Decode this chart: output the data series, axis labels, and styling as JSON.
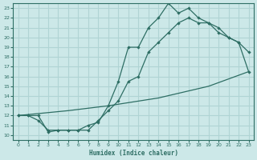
{
  "xlabel": "Humidex (Indice chaleur)",
  "bg_color": "#cce8e8",
  "grid_color": "#b0d4d4",
  "line_color": "#2e6e64",
  "xlim": [
    -0.5,
    23.5
  ],
  "ylim": [
    9.5,
    23.5
  ],
  "xticks": [
    0,
    1,
    2,
    3,
    4,
    5,
    6,
    7,
    8,
    9,
    10,
    11,
    12,
    13,
    14,
    15,
    16,
    17,
    18,
    19,
    20,
    21,
    22,
    23
  ],
  "yticks": [
    10,
    11,
    12,
    13,
    14,
    15,
    16,
    17,
    18,
    19,
    20,
    21,
    22,
    23
  ],
  "curve1_x": [
    0,
    1,
    2,
    3,
    4,
    5,
    6,
    7,
    8,
    9,
    10,
    11,
    12,
    13,
    14,
    15,
    16,
    17,
    18,
    19,
    20,
    21,
    22,
    23
  ],
  "curve1_y": [
    12,
    12,
    12,
    10.3,
    10.5,
    10.5,
    10.5,
    11.0,
    11.3,
    13.0,
    15.5,
    19.0,
    19.0,
    21.0,
    22.0,
    23.5,
    22.5,
    23.0,
    22.0,
    21.5,
    20.5,
    20.0,
    19.5,
    18.5
  ],
  "curve2_x": [
    0,
    1,
    2,
    3,
    4,
    5,
    6,
    7,
    8,
    9,
    10,
    11,
    12,
    13,
    14,
    15,
    16,
    17,
    18,
    19,
    20,
    21,
    22,
    23
  ],
  "curve2_y": [
    12,
    12,
    11.5,
    10.5,
    10.5,
    10.5,
    10.5,
    10.5,
    11.5,
    12.5,
    13.5,
    15.5,
    16.0,
    18.5,
    19.5,
    20.5,
    21.5,
    22.0,
    21.5,
    21.5,
    21.0,
    20.0,
    19.5,
    16.5
  ],
  "curve3_x": [
    0,
    2,
    5,
    9,
    14,
    19,
    23
  ],
  "curve3_y": [
    12,
    12.2,
    12.5,
    13.0,
    13.8,
    15.0,
    16.5
  ]
}
